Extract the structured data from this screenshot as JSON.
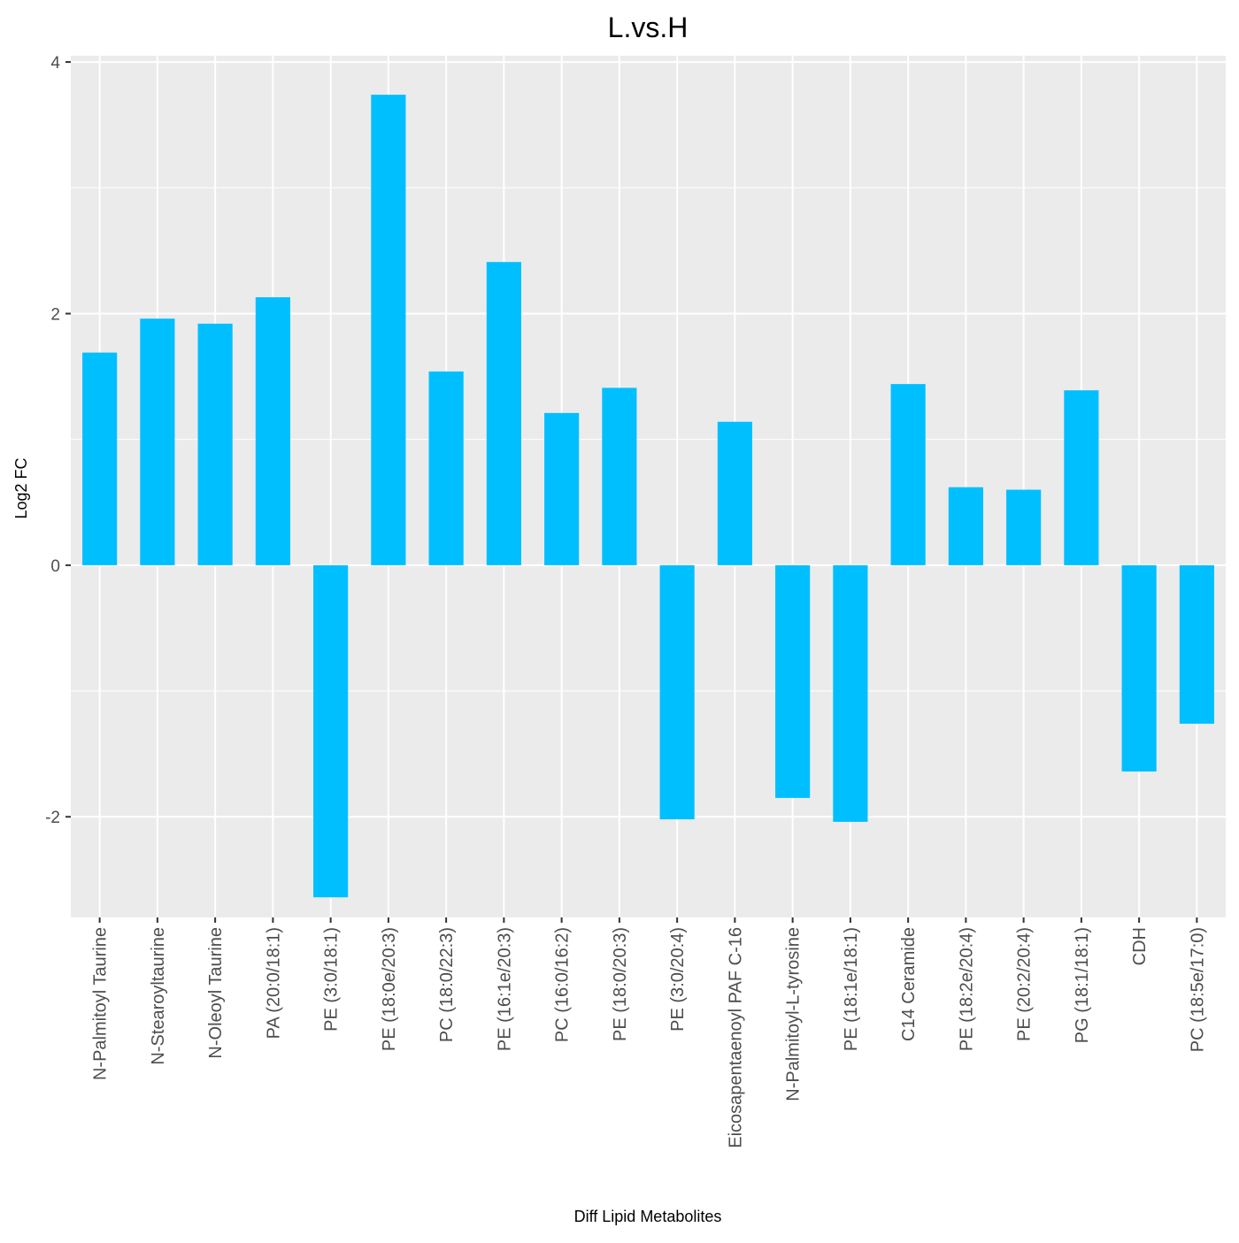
{
  "chart_data": {
    "type": "bar",
    "title": "L.vs.H",
    "xlabel": "Diff Lipid Metabolites",
    "ylabel": "Log2 FC",
    "ylim": [
      -2.8,
      4.05
    ],
    "yticks": [
      -2,
      0,
      2,
      4
    ],
    "yticklabels": [
      "-2",
      "0",
      "2",
      "4"
    ],
    "grid": true,
    "bar_color": "#00BFFF",
    "panel_background": "#EBEBEB",
    "grid_color": "#FFFFFF",
    "categories": [
      "N-Palmitoyl Taurine",
      "N-Stearoyltaurine",
      "N-Oleoyl Taurine",
      "PA (20:0/18:1)",
      "PE (3:0/18:1)",
      "PE (18:0e/20:3)",
      "PC (18:0/22:3)",
      "PE (16:1e/20:3)",
      "PC (16:0/16:2)",
      "PE (18:0/20:3)",
      "PE (3:0/20:4)",
      "Eicosapentaenoyl PAF C-16",
      "N-Palmitoyl-L-tyrosine",
      "PE (18:1e/18:1)",
      "C14 Ceramide",
      "PE (18:2e/20:4)",
      "PE (20:2/20:4)",
      "PG (18:1/18:1)",
      "CDH",
      "PC (18:5e/17:0)"
    ],
    "values": [
      1.69,
      1.96,
      1.92,
      2.13,
      -2.64,
      3.74,
      1.54,
      2.41,
      1.21,
      1.41,
      -2.02,
      1.14,
      -1.85,
      -2.04,
      1.44,
      0.62,
      0.6,
      1.39,
      -1.64,
      -1.26
    ]
  }
}
